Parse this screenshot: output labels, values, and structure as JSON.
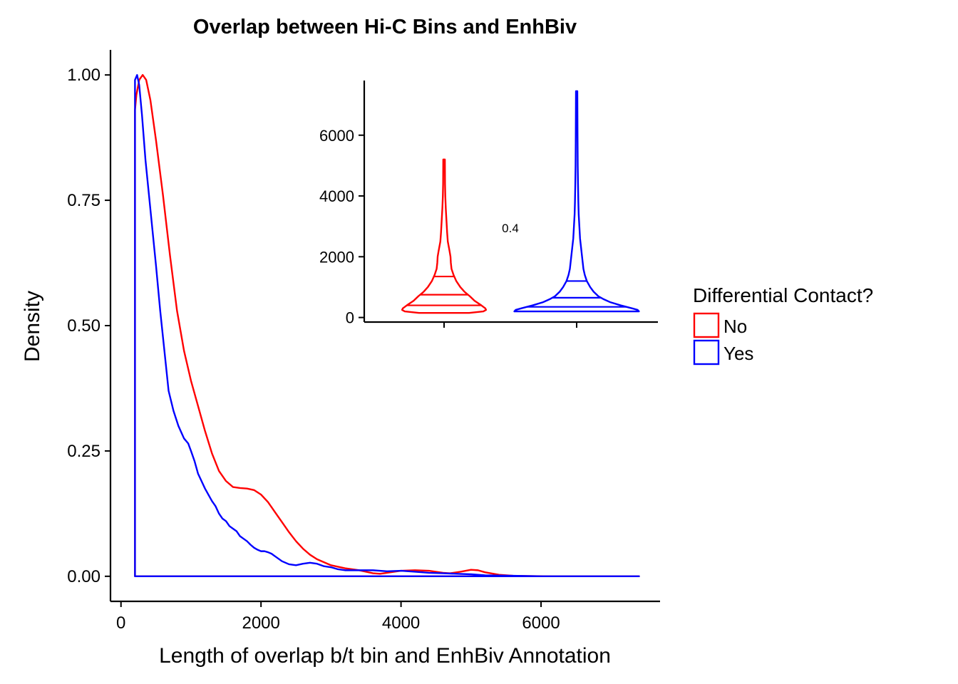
{
  "chart_data": [
    {
      "type": "line",
      "title": "Overlap between Hi-C Bins and EnhBiv",
      "xlabel": "Length of overlap b/t bin and EnhBiv Annotation",
      "ylabel": "Density",
      "xlim": [
        -150,
        7700
      ],
      "ylim": [
        -0.05,
        1.05
      ],
      "x_ticks": [
        0,
        2000,
        4000,
        6000
      ],
      "x_tick_labels": [
        "0",
        "2000",
        "4000",
        "6000"
      ],
      "y_ticks": [
        0,
        0.25,
        0.5,
        0.75,
        1
      ],
      "y_tick_labels": [
        "0.00",
        "0.25",
        "0.50",
        "0.75",
        "1.00"
      ],
      "grid": false,
      "legend": {
        "title": "Differential Contact?",
        "placement": "right",
        "entries": [
          "No",
          "Yes"
        ]
      },
      "series": [
        {
          "name": "No",
          "color": "#ff0000",
          "x": [
            200,
            220,
            260,
            310,
            360,
            420,
            500,
            600,
            700,
            800,
            900,
            1000,
            1100,
            1200,
            1300,
            1400,
            1500,
            1600,
            1700,
            1800,
            1900,
            2000,
            2100,
            2200,
            2300,
            2400,
            2500,
            2600,
            2700,
            2800,
            3000,
            3200,
            3400,
            3600,
            3700,
            3800,
            4000,
            4200,
            4400,
            4600,
            4700,
            4850,
            5000,
            5100,
            5200,
            5400,
            5600,
            5800,
            6200,
            7000,
            7400
          ],
          "y": [
            0.93,
            0.96,
            0.99,
            1.0,
            0.99,
            0.95,
            0.87,
            0.76,
            0.64,
            0.53,
            0.45,
            0.39,
            0.34,
            0.29,
            0.245,
            0.21,
            0.19,
            0.178,
            0.176,
            0.175,
            0.172,
            0.163,
            0.148,
            0.128,
            0.108,
            0.088,
            0.07,
            0.055,
            0.043,
            0.034,
            0.022,
            0.016,
            0.012,
            0.006,
            0.005,
            0.007,
            0.011,
            0.012,
            0.011,
            0.007,
            0.006,
            0.009,
            0.013,
            0.012,
            0.008,
            0.003,
            0.001,
            0.0005,
            0,
            0,
            0
          ]
        },
        {
          "name": "Yes",
          "color": "#0000ff",
          "x": [
            200,
            230,
            260,
            300,
            350,
            400,
            450,
            500,
            560,
            620,
            680,
            750,
            820,
            900,
            960,
            1000,
            1050,
            1100,
            1150,
            1200,
            1300,
            1350,
            1400,
            1450,
            1500,
            1550,
            1600,
            1650,
            1700,
            1750,
            1800,
            1850,
            1900,
            1950,
            2000,
            2050,
            2100,
            2150,
            2200,
            2300,
            2400,
            2500,
            2600,
            2700,
            2800,
            2900,
            3000,
            3100,
            3200,
            3400,
            3600,
            3800,
            4000,
            4200,
            4400,
            4600,
            4800,
            5000,
            5200,
            5600,
            6000,
            7000,
            7400
          ],
          "y": [
            0.99,
            1.0,
            0.98,
            0.92,
            0.83,
            0.76,
            0.69,
            0.62,
            0.53,
            0.45,
            0.37,
            0.33,
            0.3,
            0.275,
            0.265,
            0.25,
            0.23,
            0.205,
            0.19,
            0.175,
            0.15,
            0.14,
            0.125,
            0.115,
            0.11,
            0.1,
            0.095,
            0.09,
            0.08,
            0.075,
            0.07,
            0.063,
            0.057,
            0.053,
            0.05,
            0.05,
            0.048,
            0.045,
            0.04,
            0.03,
            0.024,
            0.022,
            0.025,
            0.027,
            0.025,
            0.02,
            0.018,
            0.014,
            0.012,
            0.012,
            0.012,
            0.01,
            0.011,
            0.009,
            0.007,
            0.006,
            0.005,
            0.004,
            0.002,
            0.001,
            0,
            0,
            0
          ]
        }
      ]
    },
    {
      "type": "violin",
      "ylim": [
        -150,
        7800
      ],
      "y_ticks": [
        0,
        2000,
        4000,
        6000
      ],
      "y_tick_labels": [
        "0",
        "2000",
        "4000",
        "6000"
      ],
      "annotations": [
        "0.4"
      ],
      "grid": false,
      "series": [
        {
          "name": "No",
          "color": "#ff0000",
          "quantiles": [
            400,
            750,
            1350
          ],
          "profile_y": [
            150,
            200,
            250,
            300,
            400,
            550,
            700,
            850,
            1000,
            1200,
            1400,
            1600,
            1800,
            2000,
            2200,
            2500,
            2800,
            3200,
            3600,
            4000,
            4400,
            4800,
            5200
          ],
          "half_width": [
            0.37,
            0.58,
            0.62,
            0.61,
            0.55,
            0.45,
            0.38,
            0.3,
            0.24,
            0.18,
            0.14,
            0.11,
            0.1,
            0.095,
            0.08,
            0.055,
            0.045,
            0.035,
            0.025,
            0.018,
            0.014,
            0.013,
            0.012
          ]
        },
        {
          "name": "Yes",
          "color": "#0000ff",
          "quantiles": [
            350,
            650,
            1200
          ],
          "profile_y": [
            200,
            250,
            300,
            400,
            500,
            600,
            700,
            850,
            1000,
            1200,
            1400,
            1600,
            1800,
            2000,
            2300,
            2600,
            3000,
            3400,
            3800,
            4400,
            5000,
            6000,
            7000,
            7450
          ],
          "half_width": [
            0.92,
            0.9,
            0.82,
            0.65,
            0.5,
            0.4,
            0.32,
            0.25,
            0.2,
            0.15,
            0.12,
            0.1,
            0.09,
            0.08,
            0.065,
            0.05,
            0.04,
            0.03,
            0.025,
            0.02,
            0.016,
            0.013,
            0.011,
            0.01
          ]
        }
      ]
    }
  ]
}
